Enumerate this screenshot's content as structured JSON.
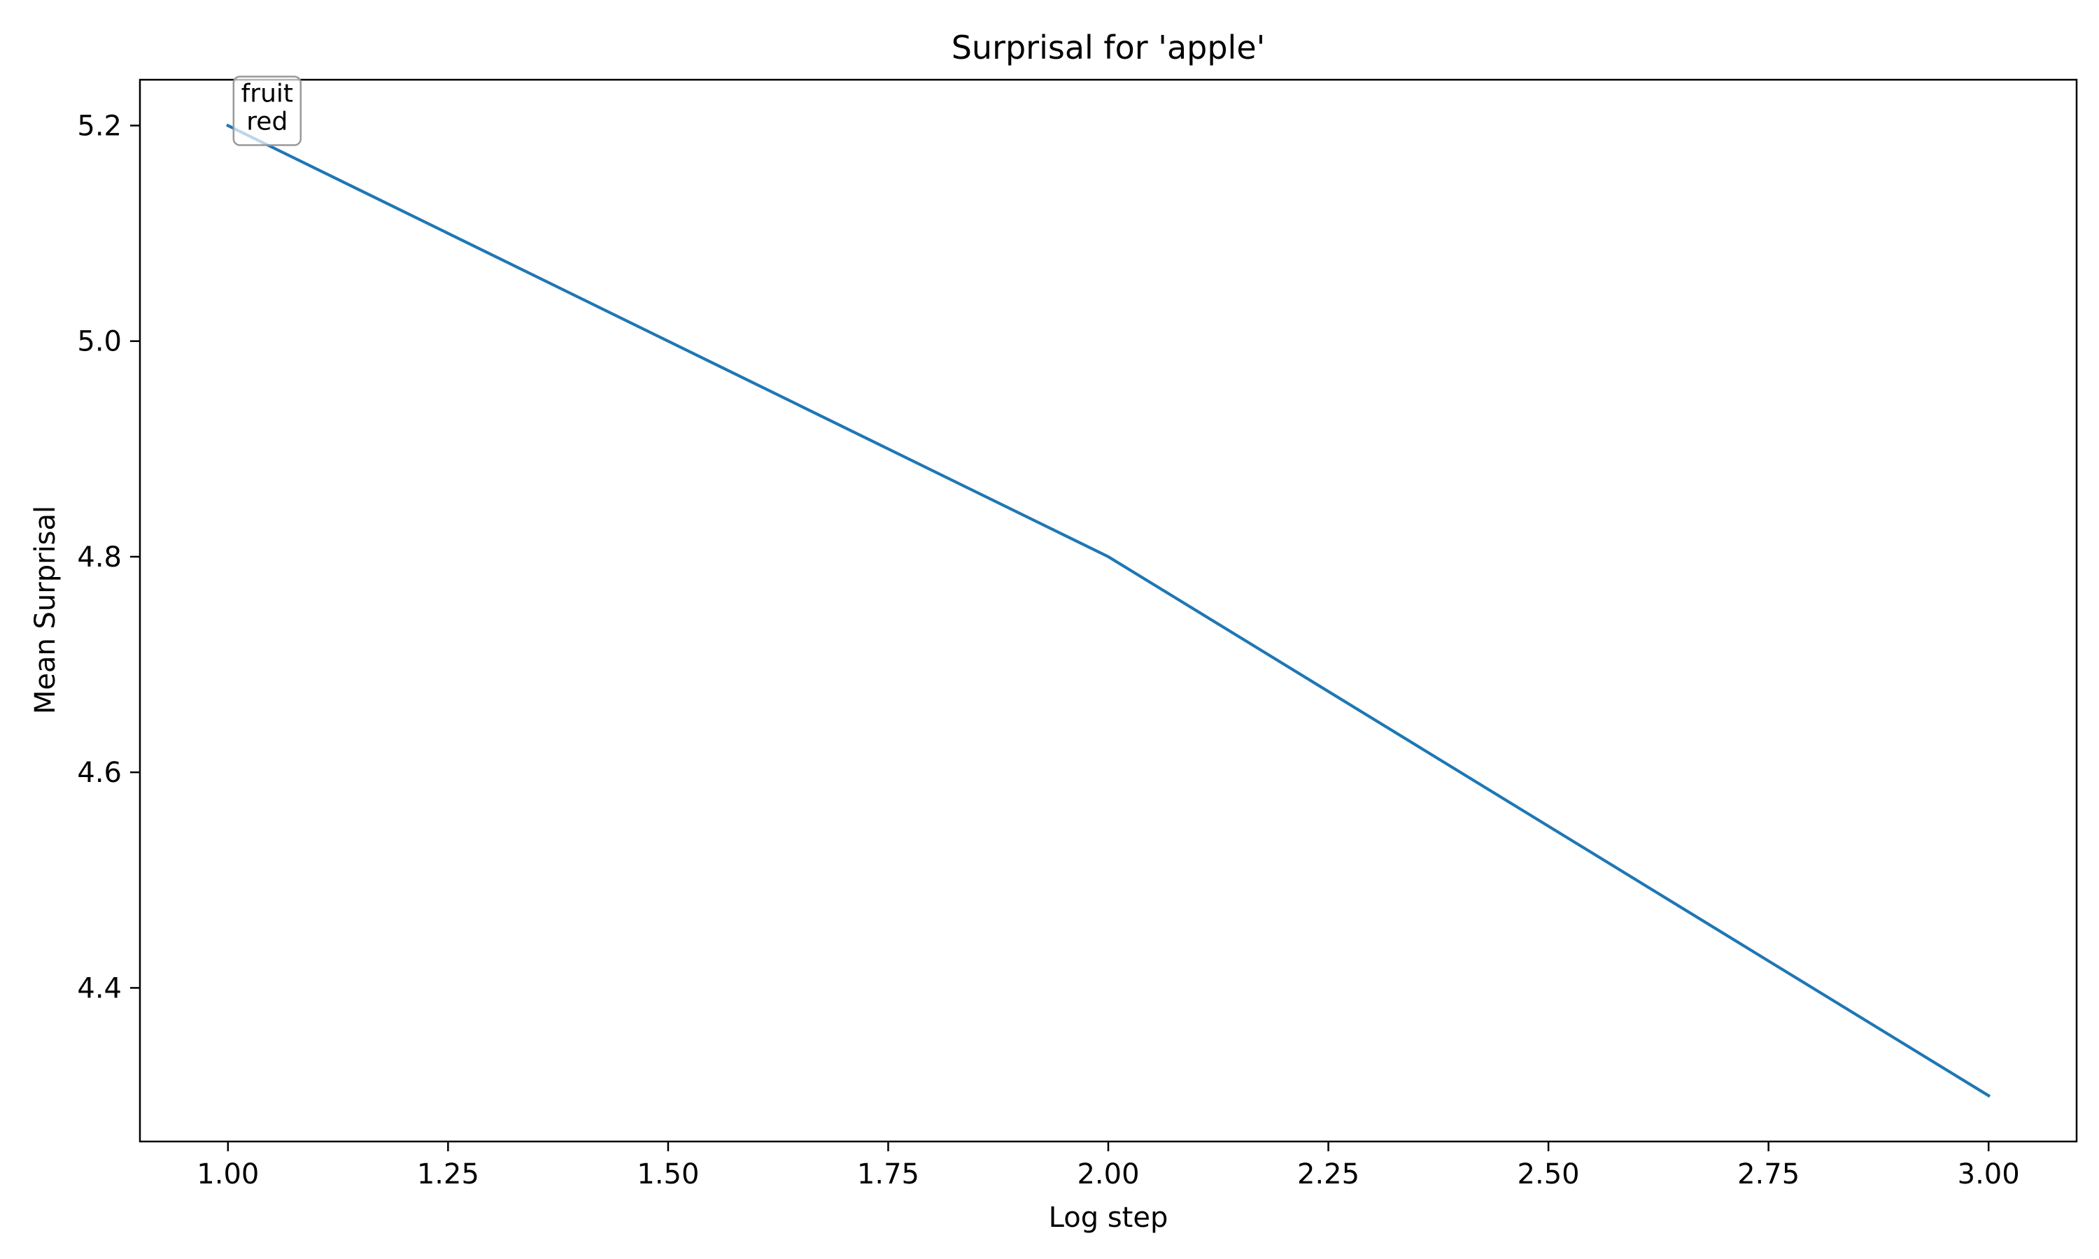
{
  "chart_data": {
    "type": "line",
    "title": "Surprisal for 'apple'",
    "xlabel": "Log step",
    "ylabel": "Mean Surprisal",
    "xlim": [
      0.9,
      3.1
    ],
    "ylim": [
      4.2575,
      5.2425
    ],
    "x_ticks": [
      1.0,
      1.25,
      1.5,
      1.75,
      2.0,
      2.25,
      2.5,
      2.75,
      3.0
    ],
    "x_tick_labels": [
      "1.00",
      "1.25",
      "1.50",
      "1.75",
      "2.00",
      "2.25",
      "2.50",
      "2.75",
      "3.00"
    ],
    "y_ticks": [
      4.4,
      4.6,
      4.8,
      5.0,
      5.2
    ],
    "y_tick_labels": [
      "4.4",
      "4.6",
      "4.8",
      "5.0",
      "5.2"
    ],
    "grid": false,
    "series": [
      {
        "x": [
          1,
          2,
          3
        ],
        "y": [
          5.2,
          4.8,
          4.3
        ],
        "color": "#1f77b4"
      }
    ],
    "annotations": [
      {
        "x": 1,
        "y": 5.2,
        "lines": [
          "fruit",
          "red"
        ]
      }
    ]
  }
}
